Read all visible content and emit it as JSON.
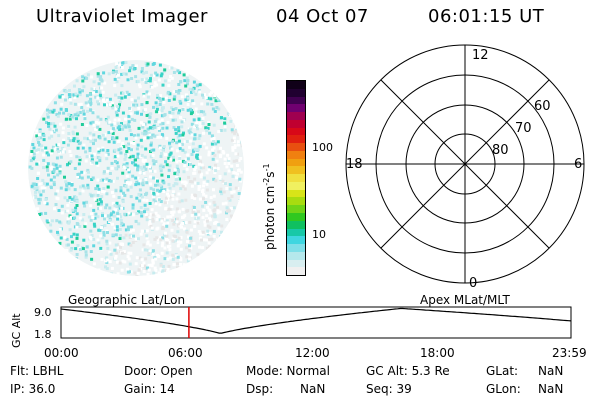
{
  "header": {
    "title": "Ultraviolet Imager",
    "date": "04 Oct 07",
    "time": "06:01:15 UT"
  },
  "colorbar": {
    "unit_prefix": "photon cm",
    "exp1": "-2",
    "unit_mid": "s",
    "exp2": "-1",
    "tick_100": "100",
    "tick_10": "10",
    "colors": [
      "#f0f0f0",
      "#d8eef0",
      "#b5e8ec",
      "#7fdfe8",
      "#3fd6e0",
      "#18c8a8",
      "#10c060",
      "#30c820",
      "#70d418",
      "#a8dc10",
      "#d8e418",
      "#f0f060",
      "#f0e040",
      "#f0c020",
      "#f0a010",
      "#f08010",
      "#e85010",
      "#e02010",
      "#d80818",
      "#c00030",
      "#a00050",
      "#700070",
      "#400050",
      "#200030",
      "#100018"
    ],
    "accent": "#1f2fff"
  },
  "polar_plot": {
    "label_top": "12",
    "label_bottom": "0",
    "label_left": "18",
    "label_right": "6",
    "ring_60": "60",
    "ring_70": "70",
    "ring_80": "80"
  },
  "timeline": {
    "left_label": "Geographic Lat/Lon",
    "right_label": "Apex MLat/MLT",
    "axis_label": "GC Alt",
    "y_max": "9.0",
    "y_min": "1.8",
    "ticks": [
      "00:00",
      "06:00",
      "12:00",
      "18:00",
      "23:59"
    ],
    "marker_color": "#e00000",
    "marker_time_hours": 6.02
  },
  "info": {
    "flt": "Flt: LBHL",
    "door": "Door: Open",
    "mode": "Mode: Normal",
    "gcalt": "GC Alt: 5.3 Re",
    "glat_label": "GLat:",
    "glat_value": "NaN",
    "ip": "IP: 36.0",
    "gain": "Gain: 14",
    "dsp_label": "Dsp:",
    "dsp_value": "NaN",
    "seq": "Seq: 39",
    "glon_label": "GLon:",
    "glon_value": "NaN"
  }
}
